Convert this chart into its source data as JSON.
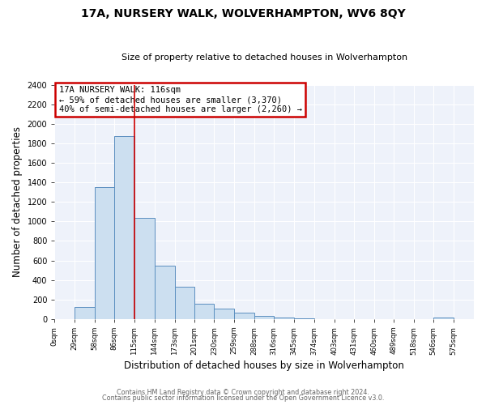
{
  "title": "17A, NURSERY WALK, WOLVERHAMPTON, WV6 8QY",
  "subtitle": "Size of property relative to detached houses in Wolverhampton",
  "xlabel": "Distribution of detached houses by size in Wolverhampton",
  "ylabel": "Number of detached properties",
  "bar_color": "#ccdff0",
  "bar_edge_color": "#5b8fc0",
  "background_color": "#eef2fa",
  "grid_color": "#ffffff",
  "annotation_text": "17A NURSERY WALK: 116sqm\n← 59% of detached houses are smaller (3,370)\n40% of semi-detached houses are larger (2,260) →",
  "annotation_box_color": "#ffffff",
  "annotation_box_edge_color": "#cc0000",
  "red_line_x": 115,
  "bin_edges": [
    0,
    29,
    58,
    86,
    115,
    144,
    173,
    201,
    230,
    259,
    288,
    316,
    345,
    374,
    403,
    431,
    460,
    489,
    518,
    546,
    575,
    604
  ],
  "bar_heights": [
    0,
    120,
    1350,
    1880,
    1040,
    545,
    330,
    155,
    105,
    60,
    30,
    15,
    5,
    0,
    0,
    0,
    0,
    0,
    0,
    15,
    0
  ],
  "ylim": [
    0,
    2400
  ],
  "yticks": [
    0,
    200,
    400,
    600,
    800,
    1000,
    1200,
    1400,
    1600,
    1800,
    2000,
    2200,
    2400
  ],
  "xtick_labels": [
    "0sqm",
    "29sqm",
    "58sqm",
    "86sqm",
    "115sqm",
    "144sqm",
    "173sqm",
    "201sqm",
    "230sqm",
    "259sqm",
    "288sqm",
    "316sqm",
    "345sqm",
    "374sqm",
    "403sqm",
    "431sqm",
    "460sqm",
    "489sqm",
    "518sqm",
    "546sqm",
    "575sqm"
  ],
  "footer_lines": [
    "Contains HM Land Registry data © Crown copyright and database right 2024.",
    "Contains public sector information licensed under the Open Government Licence v3.0."
  ]
}
